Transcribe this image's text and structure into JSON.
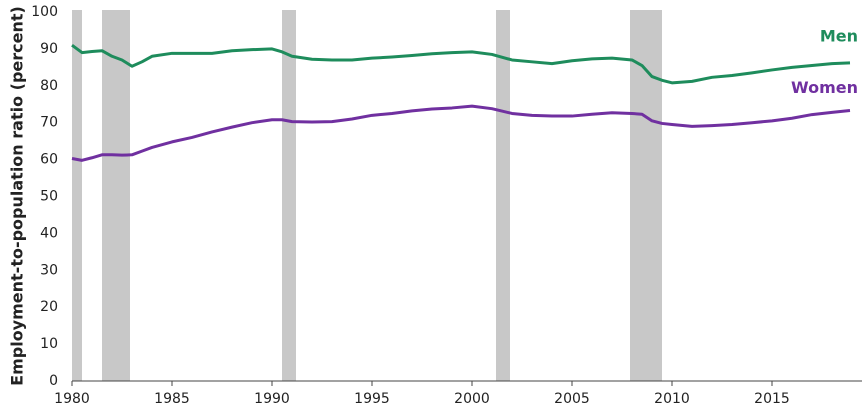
{
  "chart_data": {
    "type": "line",
    "y_label": "Employment-to-population ratio (percent)",
    "x": [
      1980,
      1980.5,
      1981,
      1981.5,
      1982,
      1982.5,
      1983,
      1983.5,
      1984,
      1985,
      1986,
      1987,
      1988,
      1989,
      1990,
      1990.5,
      1991,
      1992,
      1993,
      1994,
      1995,
      1996,
      1997,
      1998,
      1999,
      2000,
      2001,
      2002,
      2003,
      2004,
      2005,
      2006,
      2007,
      2008,
      2008.5,
      2009,
      2009.5,
      2010,
      2011,
      2012,
      2013,
      2014,
      2015,
      2016,
      2017,
      2018,
      2018.9
    ],
    "series": [
      {
        "name": "Men",
        "color": "#1e8c5c",
        "values": [
          91,
          89,
          89.3,
          89.5,
          88,
          87,
          85.3,
          86.5,
          88,
          88.8,
          88.8,
          88.8,
          89.5,
          89.8,
          90,
          89.2,
          88,
          87.2,
          87,
          87,
          87.5,
          87.8,
          88.2,
          88.7,
          89,
          89.2,
          88.5,
          87,
          86.5,
          86,
          86.8,
          87.3,
          87.5,
          87,
          85.5,
          82.5,
          81.5,
          80.8,
          81.2,
          82.3,
          82.8,
          83.5,
          84.3,
          85,
          85.5,
          86,
          86.2
        ]
      },
      {
        "name": "Women",
        "color": "#7030a0",
        "values": [
          60.3,
          59.8,
          60.5,
          61.3,
          61.3,
          61.2,
          61.3,
          62.3,
          63.3,
          64.8,
          66,
          67.5,
          68.8,
          70,
          70.8,
          70.8,
          70.3,
          70.2,
          70.3,
          71,
          72,
          72.5,
          73.2,
          73.7,
          74,
          74.5,
          73.8,
          72.5,
          72,
          71.8,
          71.8,
          72.3,
          72.7,
          72.5,
          72.3,
          70.5,
          69.8,
          69.5,
          69,
          69.2,
          69.5,
          70,
          70.5,
          71.2,
          72.2,
          72.8,
          73.3
        ]
      }
    ],
    "recessions": [
      [
        1980.0,
        1980.5
      ],
      [
        1981.5,
        1982.9
      ],
      [
        1990.5,
        1991.2
      ],
      [
        2001.2,
        2001.9
      ],
      [
        2007.9,
        2009.5
      ]
    ],
    "recession_color": "#c8c8c8",
    "xlim": [
      1980,
      2019.5
    ],
    "xticks": [
      1980,
      1985,
      1990,
      1995,
      2000,
      2005,
      2010,
      2015
    ],
    "ylim": [
      0,
      100
    ],
    "yticks": [
      0,
      10,
      20,
      30,
      40,
      50,
      60,
      70,
      80,
      90,
      100
    ],
    "grid": false
  }
}
